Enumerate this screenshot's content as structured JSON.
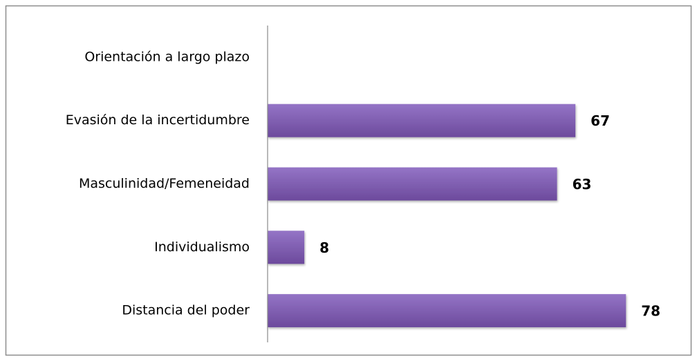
{
  "chart_data": {
    "type": "bar",
    "orientation": "horizontal",
    "categories": [
      "Orientación a largo plazo",
      "Evasión de la incertidumbre",
      "Masculinidad/Femeneidad",
      "Individualismo",
      "Distancia del poder"
    ],
    "values": [
      null,
      67,
      63,
      8,
      78
    ],
    "color": "#7f5bb3",
    "xlim": [
      0,
      90
    ]
  }
}
